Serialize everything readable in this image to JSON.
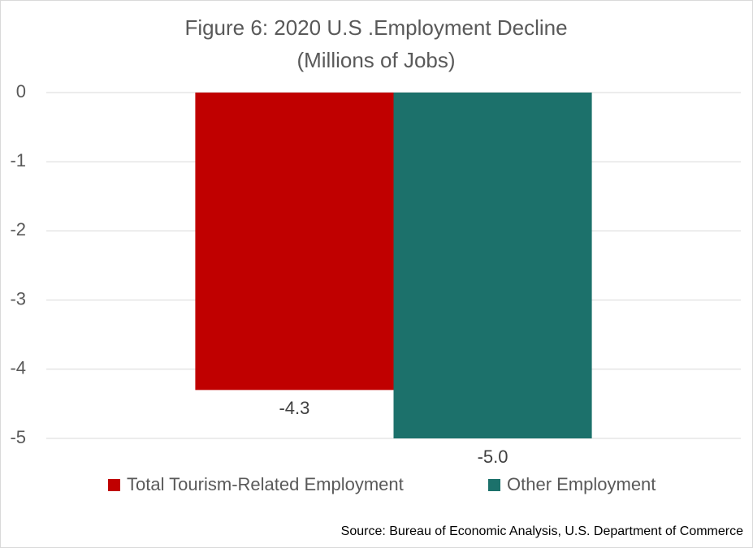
{
  "chart_data": {
    "type": "bar",
    "title": "Figure 6: 2020 U.S .Employment Decline",
    "subtitle": "(Millions of Jobs)",
    "categories": [
      null
    ],
    "series": [
      {
        "name": "Total Tourism-Related Employment",
        "color": "#c00000",
        "values": [
          -4.3
        ],
        "value_labels": [
          "-4.3"
        ]
      },
      {
        "name": "Other Employment",
        "color": "#1c716b",
        "values": [
          -5
        ],
        "value_labels": [
          "-5.0"
        ]
      }
    ],
    "ylim": [
      -5,
      0
    ],
    "yticks": [
      0,
      -1,
      -2,
      -3,
      -4,
      -5
    ],
    "grid": true,
    "legend": "bottom",
    "source": "Source: Bureau of Economic Analysis, U.S. Department of Commerce"
  }
}
